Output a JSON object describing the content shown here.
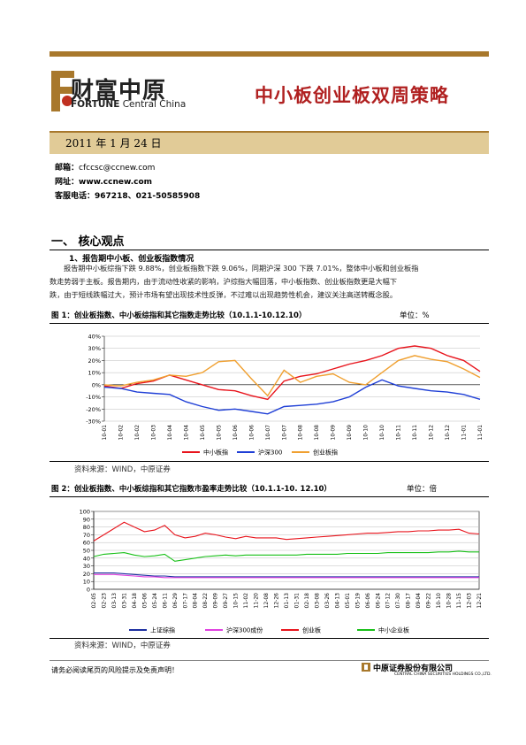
{
  "header": {
    "brand_cn": "财富中原",
    "brand_en_bold": "FORTUNE",
    "brand_en_rest": " Central China",
    "report_title": "中小板创业板双周策略"
  },
  "date": "2011 年 1 月 24 日",
  "contact": {
    "email_label": "邮箱：",
    "email": "cfccsc@ccnew.com",
    "site_label": "网址：",
    "site": "www.ccnew.com",
    "phone_label": "客服电话：",
    "phone": "967218、021-50585908"
  },
  "section": {
    "title": "一、 核心观点",
    "subtitle": "1、报告期中小板、创业板指数情况",
    "para1": "报告期中小板综指下跌 9.88%，创业板指数下跌 9.06%，同期沪深 300 下跌 7.01%，整体中小板和创业板指",
    "para2": "数走势弱于主板。报告期内，由于流动性收紧的影响，沪综指大幅回落，中小板指数、创业板指数更是大幅下",
    "para3": "跌，由于短线跌幅过大，预计市场有望出现技术性反弹，不过难以出现趋势性机会，建议关注高送转概念股。"
  },
  "figure1": {
    "title": "图 1：创业板指数、中小板综指和其它指数走势比较（10.1.1-10.12.10）",
    "unit": "单位：%",
    "source": "资料来源：WIND，中原证券"
  },
  "figure2": {
    "title": "图 2：创业板指数、中小板综指和其它指数市盈率走势比较（10.1.1-10. 12.10）",
    "unit": "单位：倍",
    "source": "资料来源：WIND，中原证券"
  },
  "footer": {
    "disclaimer": "请务必阅读尾页的风险提示及免责声明！",
    "company_cn": "中原证券股份有限公司",
    "company_en": "CENTRAL CHINA SECURITIES HOLDINGS CO.,LTD."
  },
  "colors": {
    "brand_gold": "#a8782c",
    "title_red": "#b02020",
    "date_bar": "#e1cb97"
  },
  "chart_data": [
    {
      "type": "line",
      "title": "图 1：创业板指数、中小板综指和其它指数走势比较（10.1.1-10.12.10）",
      "ylabel": "单位：%",
      "ylim": [
        -30,
        40
      ],
      "yticks": [
        "40%",
        "30%",
        "20%",
        "10%",
        "0%",
        "-10%",
        "-20%",
        "-30%"
      ],
      "categories": [
        "10-01",
        "10-02",
        "10-02",
        "10-03",
        "10-04",
        "10-04",
        "10-05",
        "10-05",
        "10-06",
        "10-06",
        "10-07",
        "10-07",
        "10-08",
        "10-08",
        "10-09",
        "10-09",
        "10-10",
        "10-10",
        "10-11",
        "10-11",
        "10-12",
        "10-12",
        "11-01",
        "11-01"
      ],
      "series": [
        {
          "name": "中小板指",
          "color": "#e8141c",
          "values": [
            -1,
            -3,
            1,
            3,
            8,
            4,
            0,
            -4,
            -5,
            -9,
            -12,
            3,
            7,
            9,
            13,
            17,
            20,
            24,
            30,
            32,
            30,
            24,
            20,
            11
          ]
        },
        {
          "name": "沪深300",
          "color": "#1f3fd6",
          "values": [
            -2,
            -3,
            -6,
            -7,
            -8,
            -14,
            -18,
            -21,
            -20,
            -22,
            -24,
            -18,
            -17,
            -16,
            -14,
            -10,
            -2,
            4,
            -1,
            -3,
            -5,
            -6,
            -8,
            -12
          ]
        },
        {
          "name": "创业板指",
          "color": "#f0a030",
          "values": [
            0,
            -1,
            2,
            4,
            8,
            7,
            10,
            19,
            20,
            5,
            -9,
            12,
            2,
            7,
            9,
            2,
            0,
            10,
            20,
            24,
            21,
            19,
            13,
            6
          ]
        }
      ]
    },
    {
      "type": "line",
      "title": "图 2：创业板指数、中小板综指和其它指数市盈率走势比较（10.1.1-10. 12.10）",
      "ylabel": "单位：倍",
      "ylim": [
        0,
        100
      ],
      "yticks": [
        "100",
        "90",
        "80",
        "70",
        "60",
        "50",
        "40",
        "30",
        "20",
        "10",
        "0"
      ],
      "categories": [
        "02-05",
        "02-23",
        "03-13",
        "03-31",
        "04-18",
        "05-06",
        "05-24",
        "06-11",
        "06-29",
        "07-17",
        "08-04",
        "08-22",
        "09-09",
        "09-27",
        "10-15",
        "11-02",
        "11-20",
        "12-08",
        "12-26",
        "01-13",
        "01-31",
        "02-18",
        "03-08",
        "03-26",
        "04-13",
        "05-01",
        "05-19",
        "06-06",
        "06-24",
        "07-12",
        "07-30",
        "08-17",
        "09-04",
        "09-22",
        "10-10",
        "10-28",
        "11-15",
        "12-03",
        "12-21"
      ],
      "series": [
        {
          "name": "上证综指",
          "color": "#1c2fa0",
          "values": [
            21,
            21,
            21,
            20,
            19,
            18,
            17,
            17,
            16,
            16,
            16,
            16,
            16,
            16,
            16,
            16,
            16,
            16,
            16,
            16,
            16,
            16,
            16,
            16,
            16,
            16,
            16,
            16,
            16,
            16,
            16,
            16,
            16,
            16,
            16,
            16,
            16,
            16,
            16
          ]
        },
        {
          "name": "沪深300成份",
          "color": "#e040e0",
          "values": [
            19,
            19,
            19,
            18,
            17,
            16,
            16,
            15,
            15,
            15,
            15,
            15,
            15,
            15,
            15,
            15,
            15,
            15,
            15,
            15,
            15,
            15,
            15,
            15,
            15,
            15,
            15,
            15,
            15,
            15,
            15,
            15,
            15,
            15,
            15,
            15,
            15,
            15,
            15
          ]
        },
        {
          "name": "创业板",
          "color": "#e8141c",
          "values": [
            62,
            70,
            78,
            86,
            80,
            74,
            76,
            82,
            70,
            66,
            68,
            72,
            70,
            67,
            65,
            68,
            66,
            66,
            66,
            64,
            65,
            66,
            67,
            68,
            69,
            70,
            71,
            72,
            72,
            73,
            74,
            74,
            75,
            75,
            76,
            76,
            77,
            72,
            71
          ]
        },
        {
          "name": "中小企业板",
          "color": "#18c018",
          "values": [
            42,
            45,
            46,
            47,
            44,
            42,
            43,
            45,
            36,
            38,
            40,
            42,
            43,
            44,
            43,
            44,
            44,
            44,
            44,
            44,
            44,
            45,
            45,
            45,
            45,
            46,
            46,
            46,
            46,
            47,
            47,
            47,
            47,
            47,
            48,
            48,
            49,
            48,
            48
          ]
        }
      ]
    }
  ]
}
